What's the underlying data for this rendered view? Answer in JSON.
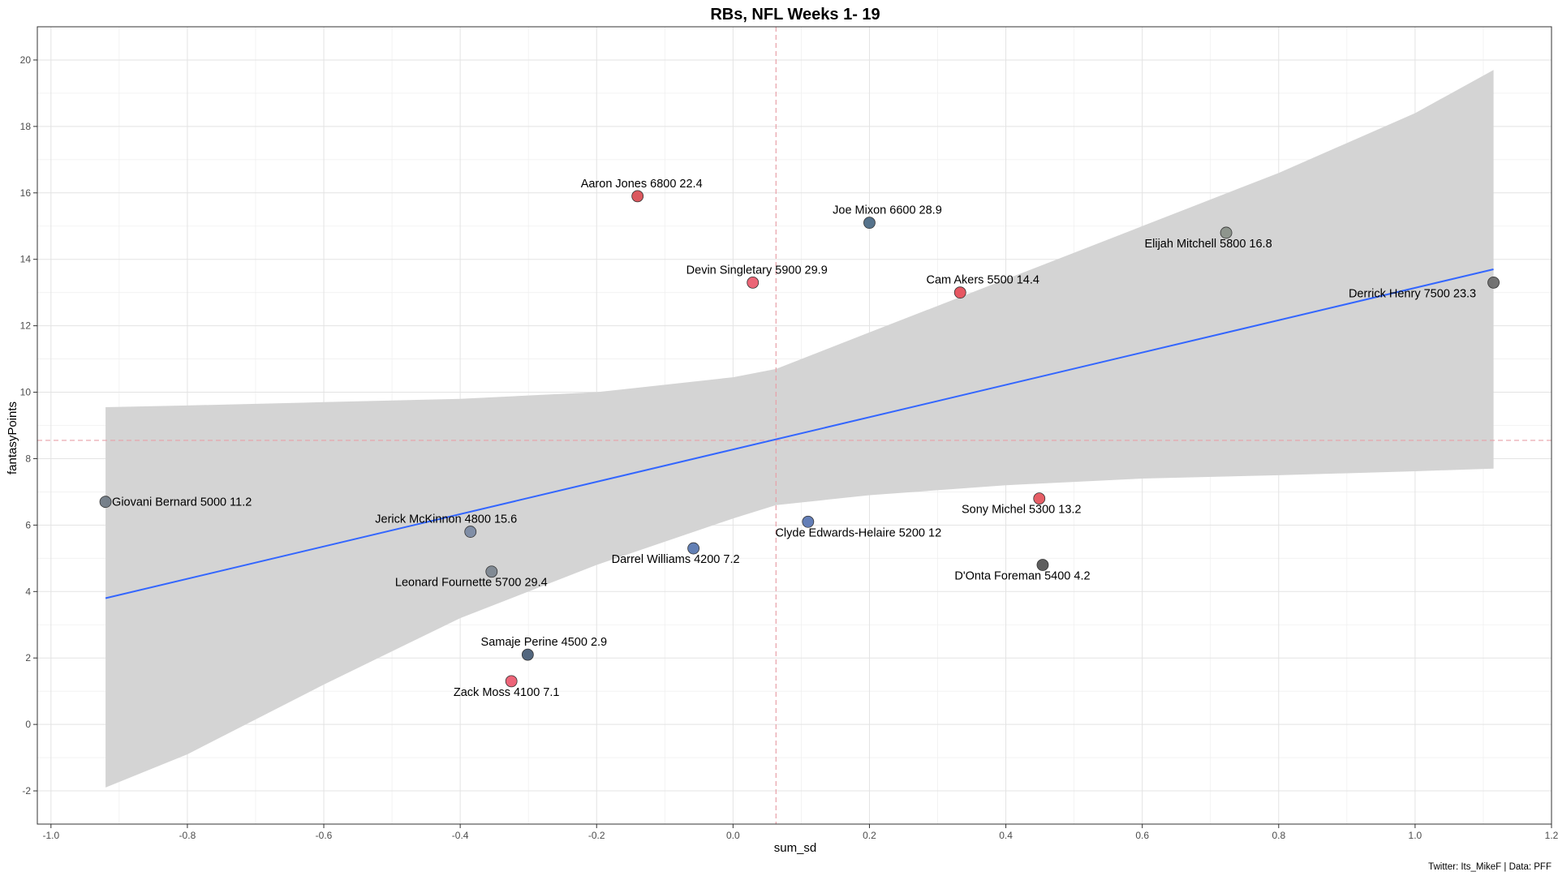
{
  "chart_data": {
    "type": "scatter",
    "title": "RBs, NFL Weeks 1- 19",
    "xlabel": "sum_sd",
    "ylabel": "fantasyPoints",
    "caption": "Twitter: Its_MikeF | Data: PFF",
    "xlim": [
      -1.02,
      1.2
    ],
    "ylim": [
      -3,
      21
    ],
    "x_ticks": [
      -1.0,
      -0.8,
      -0.6,
      -0.4,
      -0.2,
      0.0,
      0.2,
      0.4,
      0.6,
      0.8,
      1.0,
      1.2
    ],
    "x_tick_labels": [
      "-1.0",
      "-0.8",
      "-0.6",
      "-0.4",
      "-0.2",
      "0.0",
      "0.2",
      "0.4",
      "0.6",
      "0.8",
      "1.0",
      "1.2"
    ],
    "y_ticks": [
      -2,
      0,
      2,
      4,
      6,
      8,
      10,
      12,
      14,
      16,
      18,
      20
    ],
    "y_tick_labels": [
      "-2",
      "0",
      "2",
      "4",
      "6",
      "8",
      "10",
      "12",
      "14",
      "16",
      "18",
      "20"
    ],
    "grid": true,
    "vline_x": 0.063,
    "hline_y": 8.55,
    "ref_line_color": "#e8a0a8",
    "trend_line": {
      "x": [
        -0.92,
        1.115
      ],
      "y": [
        3.8,
        13.7
      ],
      "color": "#3366ff"
    },
    "confidence_band": {
      "color": "#d4d4d4",
      "x": [
        -0.92,
        -0.8,
        -0.6,
        -0.4,
        -0.2,
        0.0,
        0.063,
        0.2,
        0.4,
        0.6,
        0.8,
        1.0,
        1.115
      ],
      "upper": [
        9.55,
        9.6,
        9.7,
        9.8,
        10.0,
        10.45,
        10.7,
        11.8,
        13.4,
        15.0,
        16.6,
        18.4,
        19.7
      ],
      "lower": [
        -1.9,
        -0.9,
        1.2,
        3.2,
        4.8,
        6.2,
        6.6,
        6.9,
        7.2,
        7.4,
        7.5,
        7.62,
        7.7
      ]
    },
    "points": [
      {
        "label": "Aaron Jones 6800 22.4",
        "x": -0.14,
        "y": 15.9,
        "color": "#d94f55"
      },
      {
        "label": "Joe Mixon 6600 28.9",
        "x": 0.2,
        "y": 15.1,
        "color": "#4c6a85"
      },
      {
        "label": "Elijah Mitchell 5800 16.8",
        "x": 0.723,
        "y": 14.8,
        "color": "#8a9189"
      },
      {
        "label": "Devin Singletary 5900 29.9",
        "x": 0.029,
        "y": 13.3,
        "color": "#ea5d6f"
      },
      {
        "label": "Cam Akers 5500 14.4",
        "x": 0.333,
        "y": 13.0,
        "color": "#e54e5a"
      },
      {
        "label": "Derrick Henry 7500 23.3",
        "x": 1.115,
        "y": 13.3,
        "color": "#6d6d6d"
      },
      {
        "label": "Giovani Bernard 5000 11.2",
        "x": -0.92,
        "y": 6.7,
        "color": "#707a85"
      },
      {
        "label": "Sony Michel 5300 13.2",
        "x": 0.449,
        "y": 6.8,
        "color": "#e5555e"
      },
      {
        "label": "Clyde Edwards-Helaire 5200 12",
        "x": 0.11,
        "y": 6.1,
        "color": "#5b77b3"
      },
      {
        "label": "Jerick McKinnon 4800 15.6",
        "x": -0.385,
        "y": 5.8,
        "color": "#7b8aa3"
      },
      {
        "label": "Darrel Williams 4200 7.2",
        "x": -0.058,
        "y": 5.3,
        "color": "#5a78b0"
      },
      {
        "label": "D'Onta Foreman 5400 4.2",
        "x": 0.454,
        "y": 4.8,
        "color": "#555555"
      },
      {
        "label": "Leonard Fournette 5700 29.4",
        "x": -0.354,
        "y": 4.6,
        "color": "#7c8690"
      },
      {
        "label": "Samaje Perine 4500 2.9",
        "x": -0.301,
        "y": 2.1,
        "color": "#4a5f78"
      },
      {
        "label": "Zack Moss 4100 7.1",
        "x": -0.325,
        "y": 1.3,
        "color": "#ec5d72"
      }
    ]
  }
}
